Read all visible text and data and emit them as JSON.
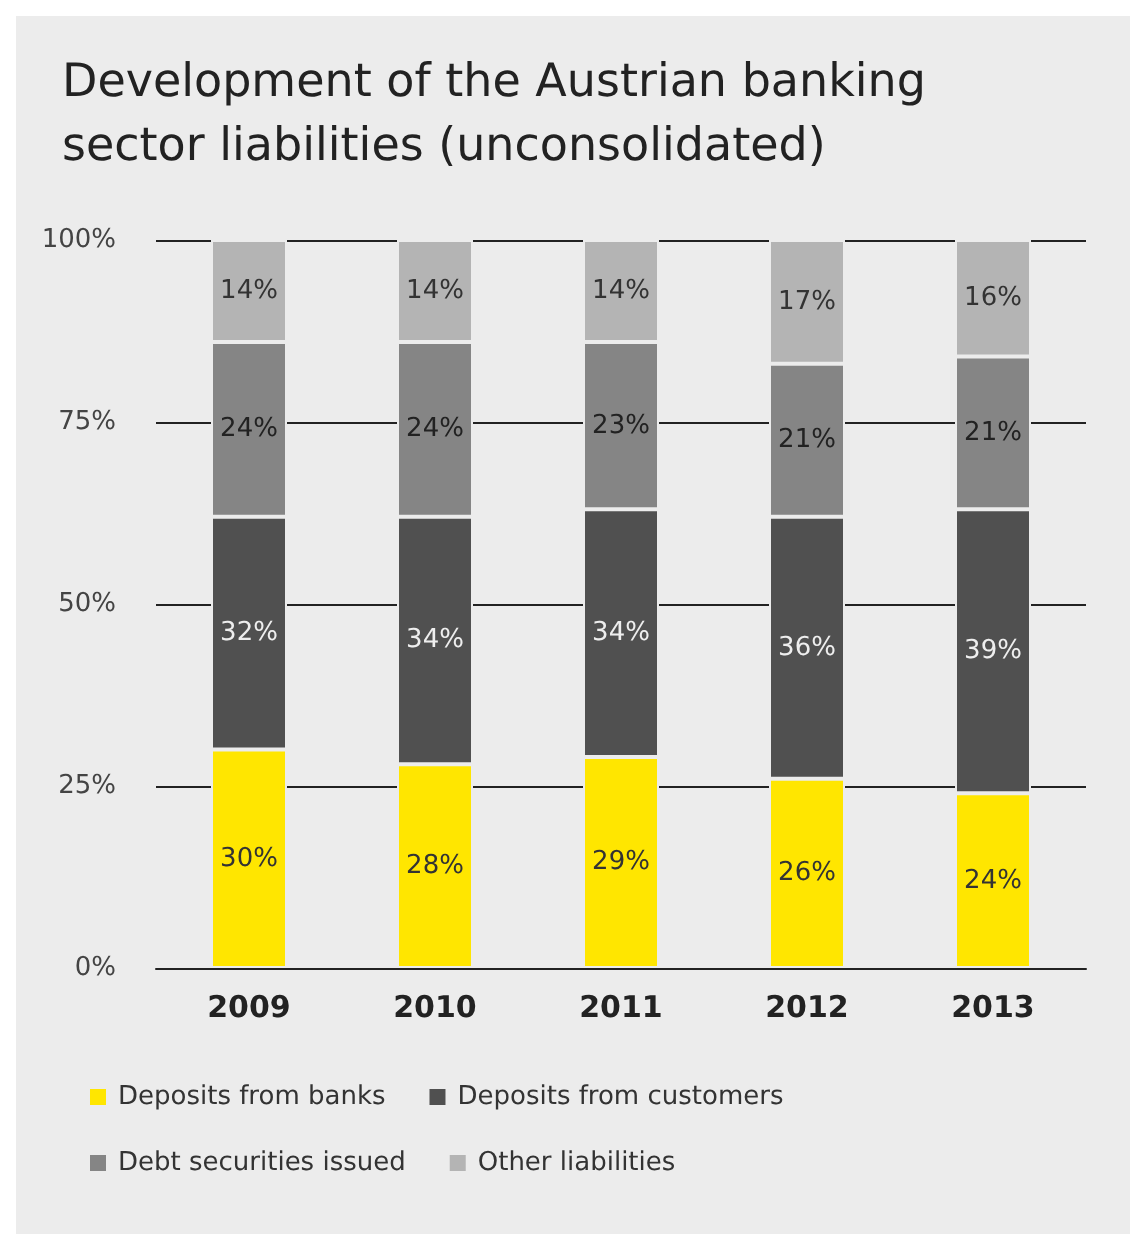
{
  "chart_data": {
    "type": "bar",
    "title": "Development of the Austrian banking sector liabilities (unconsolidated)",
    "stacked": true,
    "categories": [
      "2009",
      "2010",
      "2011",
      "2012",
      "2013"
    ],
    "series": [
      {
        "name": "Deposits from banks",
        "color": "#ffe600",
        "values": [
          30,
          28,
          29,
          26,
          24
        ],
        "value_labels": [
          "30%",
          "28%",
          "29%",
          "26%",
          "24%"
        ]
      },
      {
        "name": "Deposits from customers",
        "color": "#505050",
        "values": [
          32,
          34,
          34,
          36,
          39
        ],
        "value_labels": [
          "32%",
          "34%",
          "34%",
          "36%",
          "39%"
        ]
      },
      {
        "name": "Debt securities issued",
        "color": "#858585",
        "values": [
          24,
          24,
          23,
          21,
          21
        ],
        "value_labels": [
          "24%",
          "24%",
          "23%",
          "21%",
          "21%"
        ]
      },
      {
        "name": "Other liabilities",
        "color": "#b4b4b4",
        "values": [
          14,
          14,
          14,
          17,
          16
        ],
        "value_labels": [
          "14%",
          "14%",
          "14%",
          "17%",
          "16%"
        ]
      }
    ],
    "ylim": [
      0,
      100
    ],
    "yticks": [
      {
        "value": 0,
        "label": "0%"
      },
      {
        "value": 25,
        "label": "25%"
      },
      {
        "value": 50,
        "label": "50%"
      },
      {
        "value": 75,
        "label": "75%"
      },
      {
        "value": 100,
        "label": "100%"
      }
    ],
    "grid": "y",
    "legend": "bottom left"
  }
}
